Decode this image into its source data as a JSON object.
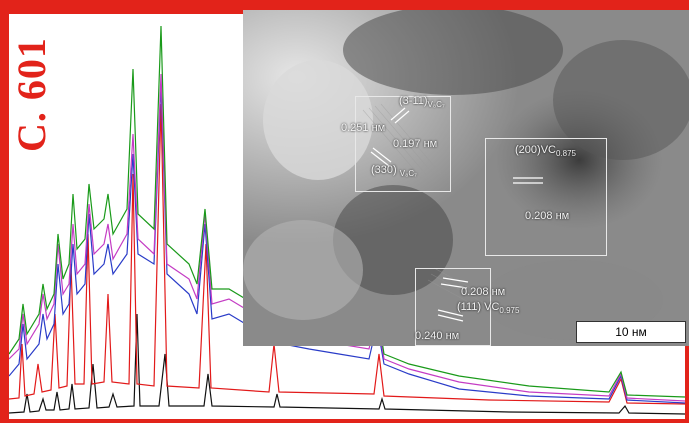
{
  "page_label": "C. 601",
  "tem_labels": {
    "l1": "(3-11)",
    "l1_sub": "V₈C₇",
    "l2": "0.251 нм",
    "l3": "0.197 нм",
    "l4": "(330)",
    "l4_sub": "V₈C₇",
    "l5": "(200)",
    "l5_main": "VC",
    "l5_sub": "0.875",
    "l6": "0.208 нм",
    "l7": "0.208 нм",
    "l8": "(111)",
    "l8_main": "VC",
    "l8_sub": "0.975",
    "l9": "0.240 нм"
  },
  "scale_bar": "10 нм",
  "colors": {
    "border": "#e2231a",
    "series": [
      "#1a9a1a",
      "#c43cc4",
      "#2a3cc8",
      "#e21a1a",
      "#111111"
    ]
  }
}
